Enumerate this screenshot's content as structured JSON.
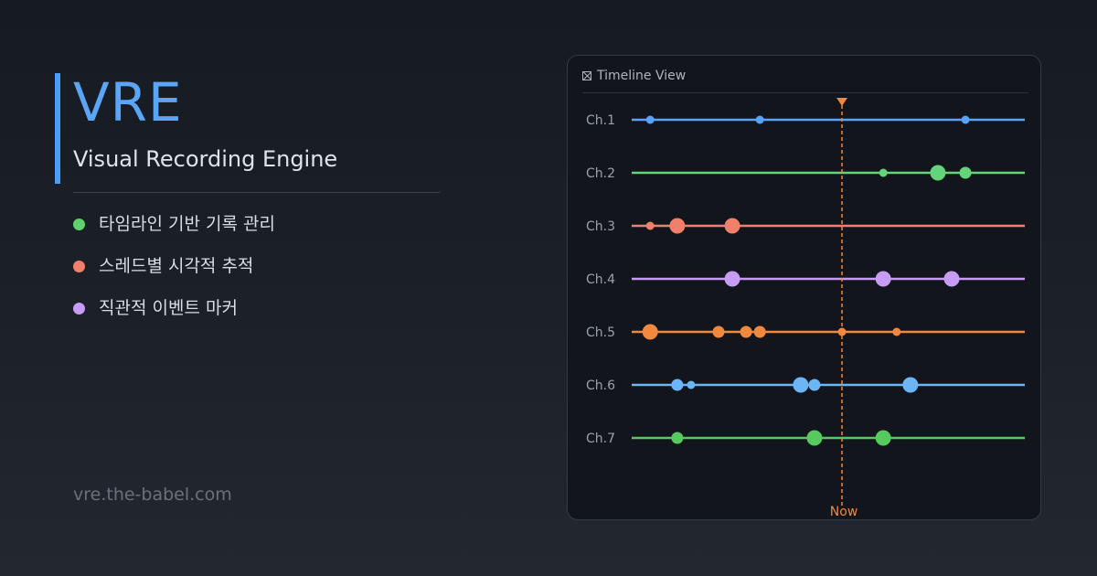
{
  "brand": {
    "title": "VRE",
    "subtitle": "Visual Recording Engine",
    "accent_color": "#4d9cf8"
  },
  "features": [
    {
      "label": "타임라인 기반 기록 관리",
      "color": "#5ed36d"
    },
    {
      "label": "스레드별 시각적 추적",
      "color": "#f0806a"
    },
    {
      "label": "직관적 이벤트 마커",
      "color": "#c89cf5"
    }
  ],
  "footer": {
    "url": "vre.the-babel.com"
  },
  "timeline": {
    "title": "Timeline View",
    "header_icon": "timeline-view-icon",
    "now_label": "Now",
    "now_color": "#f0883e",
    "channels": [
      {
        "label": "Ch.1",
        "color": "#5aa2f7",
        "events": [
          {
            "t": 0.047,
            "size": "small"
          },
          {
            "t": 0.326,
            "size": "small"
          },
          {
            "t": 0.849,
            "size": "small"
          }
        ]
      },
      {
        "label": "Ch.2",
        "color": "#64d47a",
        "events": [
          {
            "t": 0.64,
            "size": "small"
          },
          {
            "t": 0.779,
            "size": "large"
          },
          {
            "t": 0.849,
            "size": "medium"
          }
        ]
      },
      {
        "label": "Ch.3",
        "color": "#f0806a",
        "events": [
          {
            "t": 0.047,
            "size": "small"
          },
          {
            "t": 0.116,
            "size": "large"
          },
          {
            "t": 0.256,
            "size": "large"
          }
        ]
      },
      {
        "label": "Ch.4",
        "color": "#c89cf5",
        "events": [
          {
            "t": 0.256,
            "size": "large"
          },
          {
            "t": 0.64,
            "size": "large"
          },
          {
            "t": 0.814,
            "size": "large"
          }
        ]
      },
      {
        "label": "Ch.5",
        "color": "#f0883e",
        "events": [
          {
            "t": 0.047,
            "size": "large"
          },
          {
            "t": 0.221,
            "size": "medium"
          },
          {
            "t": 0.291,
            "size": "medium"
          },
          {
            "t": 0.326,
            "size": "medium"
          },
          {
            "t": 0.535,
            "size": "small"
          },
          {
            "t": 0.674,
            "size": "small"
          }
        ]
      },
      {
        "label": "Ch.6",
        "color": "#6cb6f7",
        "events": [
          {
            "t": 0.116,
            "size": "medium"
          },
          {
            "t": 0.151,
            "size": "small"
          },
          {
            "t": 0.43,
            "size": "large"
          },
          {
            "t": 0.465,
            "size": "medium"
          },
          {
            "t": 0.709,
            "size": "large"
          }
        ]
      },
      {
        "label": "Ch.7",
        "color": "#56c95f",
        "events": [
          {
            "t": 0.116,
            "size": "medium"
          },
          {
            "t": 0.465,
            "size": "large"
          },
          {
            "t": 0.64,
            "size": "large"
          }
        ]
      }
    ],
    "now_t": 0.535
  }
}
